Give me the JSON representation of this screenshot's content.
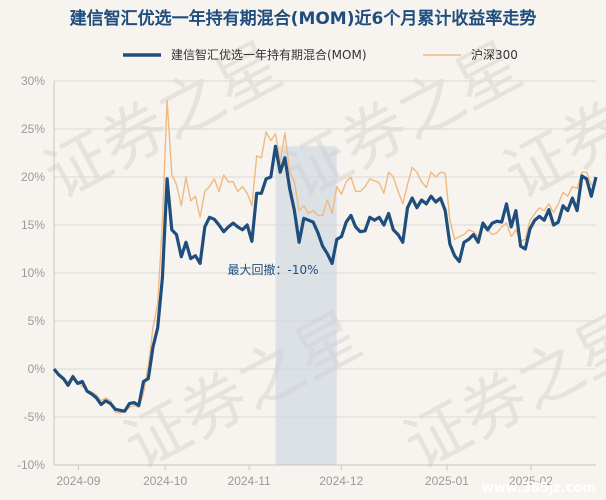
{
  "chart_data": {
    "type": "line",
    "title": "建信智汇优选一年持有期混合(MOM)近6个月累计收益率走势",
    "yticks": [
      "30%",
      "25%",
      "20%",
      "15%",
      "10%",
      "5%",
      "0%",
      "-5%",
      "-10%"
    ],
    "ylim": [
      -10,
      30
    ],
    "xticks": [
      "2024-09",
      "2024-10",
      "2024-11",
      "2024-12",
      "2025-01",
      "2025-02"
    ],
    "legend_position": "top",
    "series": [
      {
        "name": "建信智汇优选一年持有期混合(MOM)",
        "color": "#1f4e7d",
        "values": [
          0,
          -0.6,
          -1,
          -1.7,
          -0.8,
          -1.5,
          -1.3,
          -2.3,
          -2.6,
          -3,
          -3.7,
          -3.3,
          -3.6,
          -4.2,
          -4.3,
          -4.4,
          -3.6,
          -3.5,
          -3.8,
          -1.3,
          -1,
          2.3,
          4.3,
          9.5,
          19.8,
          14.5,
          14,
          11.7,
          13.2,
          11.5,
          11.8,
          11,
          14.8,
          15.8,
          15.6,
          15,
          14.3,
          14.8,
          15.2,
          14.8,
          14.5,
          15,
          13.3,
          18.3,
          18.3,
          19.8,
          20,
          23.2,
          20.5,
          22,
          18.8,
          16.5,
          13.2,
          15.7,
          15.5,
          15.3,
          14.2,
          12.8,
          12,
          11,
          13.5,
          13.8,
          15.3,
          16,
          14.8,
          14.3,
          14.4,
          15.8,
          15.5,
          15.8,
          15,
          16.2,
          14.5,
          14,
          13.2,
          16.8,
          17.8,
          16.8,
          17.6,
          17.2,
          18,
          17.4,
          17.8,
          16.5,
          13,
          11.8,
          11.2,
          13.2,
          13.5,
          14,
          13.2,
          15.2,
          14.5,
          15.2,
          15.4,
          15.3,
          17.2,
          14.8,
          16.5,
          12.8,
          12.5,
          14.6,
          15.5,
          15.9,
          15.5,
          16.6,
          15,
          15.3,
          17,
          16.5,
          17.8,
          16.5,
          20.1,
          19.8,
          18,
          20
        ],
        "highlight_range": [
          47,
          60
        ]
      },
      {
        "name": "沪深300",
        "color": "#f0b982",
        "values": [
          0,
          -0.5,
          -0.9,
          -1.4,
          -0.6,
          -1.5,
          -1.8,
          -2.2,
          -2.4,
          -2.7,
          -3.3,
          -3,
          -3.3,
          -4.5,
          -4.6,
          -4.4,
          -4,
          -3.8,
          -4,
          -2.5,
          0.3,
          4.3,
          6.8,
          15.3,
          28,
          20.3,
          19.2,
          17,
          20,
          17.5,
          18,
          15.8,
          18.5,
          19,
          19.8,
          18.5,
          20.2,
          19.5,
          19.5,
          18.5,
          19,
          18.3,
          17,
          22.2,
          22,
          24.7,
          23.8,
          24.5,
          21.5,
          24.6,
          20.5,
          19.5,
          16.5,
          17,
          16.2,
          16.5,
          16,
          16,
          17.6,
          16.2,
          19,
          18.2,
          19.5,
          20,
          18.5,
          18.5,
          19,
          19.8,
          19.6,
          19.4,
          18.3,
          20.5,
          20,
          18.5,
          17.2,
          19.2,
          21,
          20.5,
          19.5,
          18.9,
          20.5,
          20,
          20.5,
          20.4,
          15.5,
          13.5,
          13.8,
          14,
          14.5,
          14.3,
          13.8,
          14.8,
          14.5,
          14,
          14.2,
          14.8,
          15.2,
          13.8,
          14.5,
          13.3,
          13.5,
          15.5,
          16.2,
          16.8,
          16.5,
          17.2,
          16.3,
          17.2,
          18.4,
          18,
          19,
          18.8,
          20.5,
          20.5,
          19.2,
          19.2
        ]
      }
    ],
    "annotations": [
      {
        "text": "最大回撤：-10%"
      }
    ]
  },
  "watermark": {
    "texts": [
      "证券之星",
      "证券之星",
      "证券之星",
      "证券之星",
      "证券之星"
    ],
    "site": "www.365jz.com"
  }
}
